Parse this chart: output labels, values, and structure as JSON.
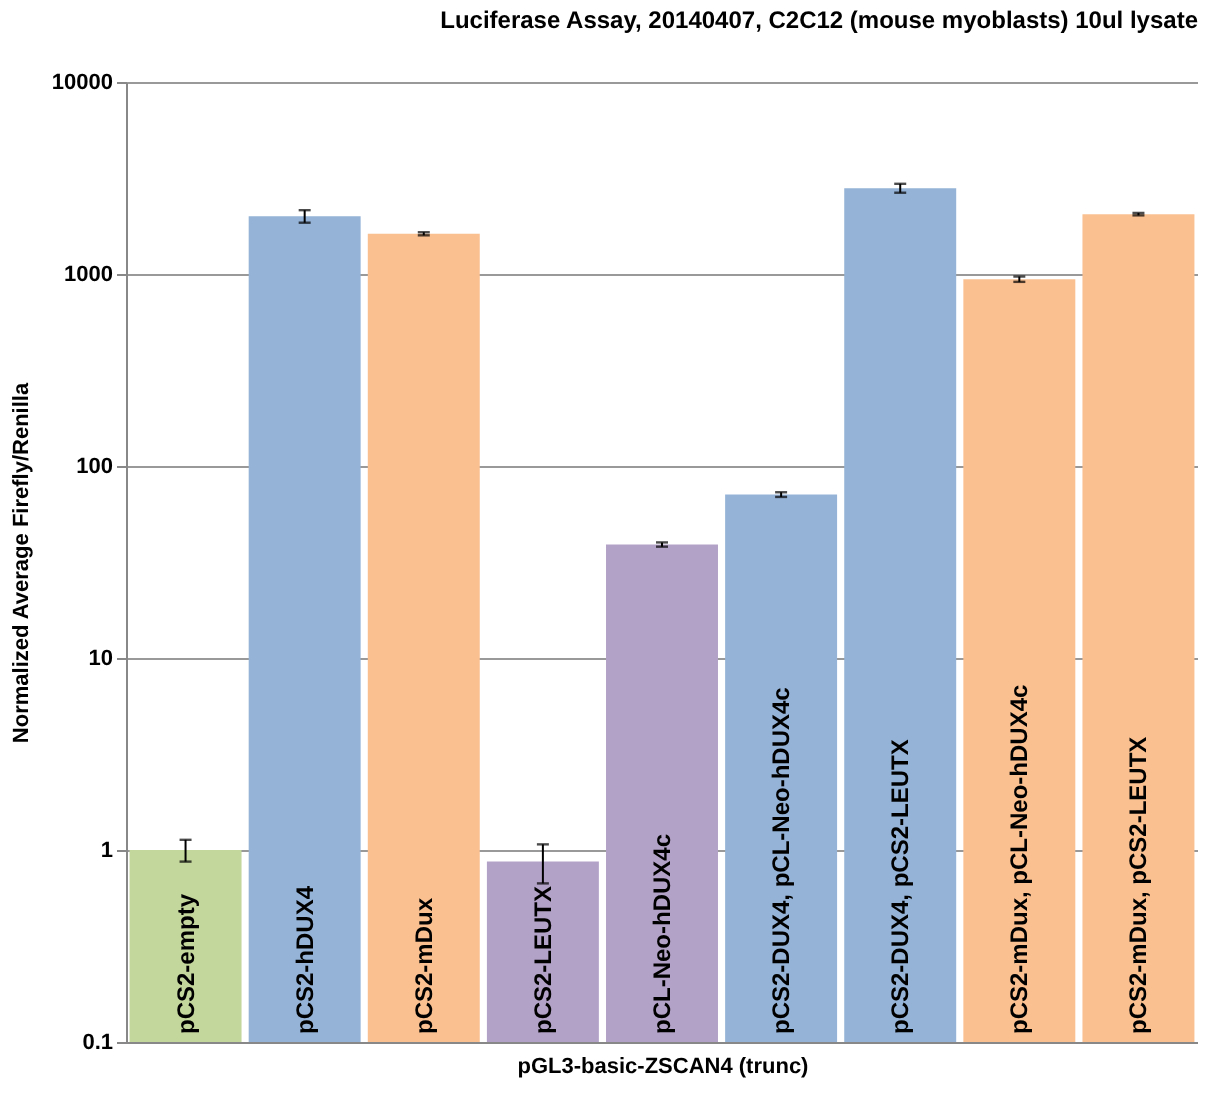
{
  "chart_data": {
    "type": "bar",
    "title": "Luciferase Assay, 20140407, C2C12 (mouse myoblasts)  10ul lysate",
    "xlabel": "pGL3-basic-ZSCAN4 (trunc)",
    "ylabel": "Normalized Average Firefly/Renilla",
    "categories": [
      "pCS2-empty",
      "pCS2-hDUX4",
      "pCS2-mDux",
      "pCS2-LEUTX",
      "pCL-Neo-hDUX4c",
      "pCS2-DUX4, pCL-Neo-hDUX4c",
      "pCS2-DUX4, pCS2-LEUTX",
      "pCS2-mDux, pCL-Neo-hDUX4c",
      "pCS2-mDux, pCS2-LEUTX"
    ],
    "values": [
      1,
      2000,
      1620,
      0.87,
      39,
      71,
      2800,
      940,
      2050
    ],
    "errors": [
      0.13,
      150,
      30,
      0.2,
      1,
      2,
      150,
      30,
      30
    ],
    "colors": [
      "#c3d69b",
      "#95b3d7",
      "#fac090",
      "#b3a2c7",
      "#b3a2c7",
      "#95b3d7",
      "#95b3d7",
      "#fac090",
      "#fac090"
    ],
    "log": true,
    "ylim": [
      0.1,
      10000
    ],
    "yticks": [
      0.1,
      1,
      10,
      100,
      1000,
      10000
    ],
    "grid": "y",
    "legend": false
  }
}
